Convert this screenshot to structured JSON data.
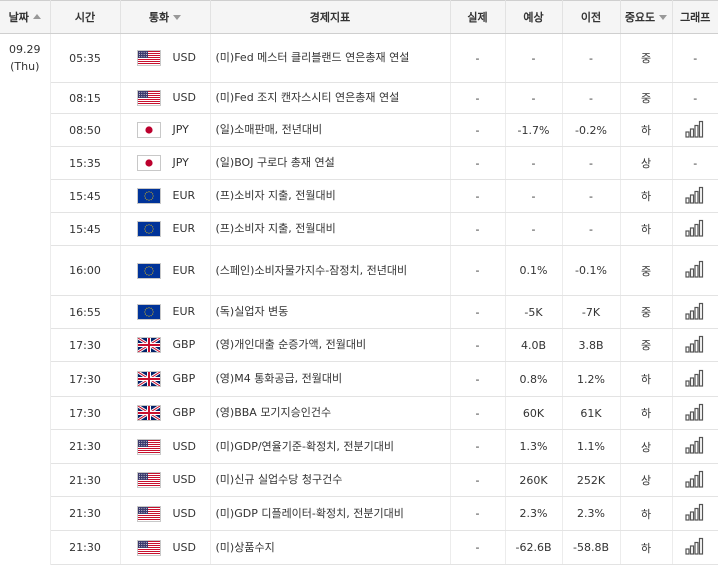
{
  "header": {
    "date": "날짜",
    "time": "시간",
    "currency": "통화",
    "indicator": "경제지표",
    "actual": "실제",
    "forecast": "예상",
    "previous": "이전",
    "importance": "중요도",
    "graph": "그래프"
  },
  "date_group": {
    "date": "09.29",
    "weekday": "(Thu)"
  },
  "rows": [
    {
      "time": "05:35",
      "flag": "us-flag-icon",
      "currency": "USD",
      "indicator": "(미)Fed 메스터 클리블랜드 연은총재 연설",
      "actual": "-",
      "forecast": "-",
      "previous": "-",
      "importance": "중",
      "graph": "-"
    },
    {
      "time": "08:15",
      "flag": "us-flag-icon",
      "currency": "USD",
      "indicator": "(미)Fed 조지 캔자스시티 연은총재 연설",
      "actual": "-",
      "forecast": "-",
      "previous": "-",
      "importance": "중",
      "graph": "-"
    },
    {
      "time": "08:50",
      "flag": "jp-flag-icon",
      "currency": "JPY",
      "indicator": "(일)소매판매, 전년대비",
      "actual": "-",
      "forecast": "-1.7%",
      "previous": "-0.2%",
      "importance": "하",
      "graph": "bar-chart-icon"
    },
    {
      "time": "15:35",
      "flag": "jp-flag-icon",
      "currency": "JPY",
      "indicator": "(일)BOJ 구로다 총재 연설",
      "actual": "-",
      "forecast": "-",
      "previous": "-",
      "importance": "상",
      "graph": "-"
    },
    {
      "time": "15:45",
      "flag": "eu-flag-icon",
      "currency": "EUR",
      "indicator": "(프)소비자 지출, 전월대비",
      "actual": "-",
      "forecast": "-",
      "previous": "-",
      "importance": "하",
      "graph": "bar-chart-icon"
    },
    {
      "time": "15:45",
      "flag": "eu-flag-icon",
      "currency": "EUR",
      "indicator": "(프)소비자 지출, 전월대비",
      "actual": "-",
      "forecast": "-",
      "previous": "-",
      "importance": "하",
      "graph": "bar-chart-icon"
    },
    {
      "time": "16:00",
      "flag": "eu-flag-icon",
      "currency": "EUR",
      "indicator": "(스페인)소비자물가지수-잠정치, 전년대비",
      "actual": "-",
      "forecast": "0.1%",
      "previous": "-0.1%",
      "importance": "중",
      "graph": "bar-chart-icon"
    },
    {
      "time": "16:55",
      "flag": "eu-flag-icon",
      "currency": "EUR",
      "indicator": "(독)실업자 변동",
      "actual": "-",
      "forecast": "-5K",
      "previous": "-7K",
      "importance": "중",
      "graph": "bar-chart-icon"
    },
    {
      "time": "17:30",
      "flag": "gb-flag-icon",
      "currency": "GBP",
      "indicator": "(영)개인대출 순증가액, 전월대비",
      "actual": "-",
      "forecast": "4.0B",
      "previous": "3.8B",
      "importance": "중",
      "graph": "bar-chart-icon"
    },
    {
      "time": "17:30",
      "flag": "gb-flag-icon",
      "currency": "GBP",
      "indicator": "(영)M4 통화공급, 전월대비",
      "actual": "-",
      "forecast": "0.8%",
      "previous": "1.2%",
      "importance": "하",
      "graph": "bar-chart-icon"
    },
    {
      "time": "17:30",
      "flag": "gb-flag-icon",
      "currency": "GBP",
      "indicator": "(영)BBA 모기지승인건수",
      "actual": "-",
      "forecast": "60K",
      "previous": "61K",
      "importance": "하",
      "graph": "bar-chart-icon"
    },
    {
      "time": "21:30",
      "flag": "us-flag-icon",
      "currency": "USD",
      "indicator": "(미)GDP/연율기준-확정치, 전분기대비",
      "actual": "-",
      "forecast": "1.3%",
      "previous": "1.1%",
      "importance": "상",
      "graph": "bar-chart-icon"
    },
    {
      "time": "21:30",
      "flag": "us-flag-icon",
      "currency": "USD",
      "indicator": "(미)신규 실업수당 청구건수",
      "actual": "-",
      "forecast": "260K",
      "previous": "252K",
      "importance": "상",
      "graph": "bar-chart-icon"
    },
    {
      "time": "21:30",
      "flag": "us-flag-icon",
      "currency": "USD",
      "indicator": "(미)GDP 디플레이터-확정치, 전분기대비",
      "actual": "-",
      "forecast": "2.3%",
      "previous": "2.3%",
      "importance": "하",
      "graph": "bar-chart-icon"
    },
    {
      "time": "21:30",
      "flag": "us-flag-icon",
      "currency": "USD",
      "indicator": "(미)상품수지",
      "actual": "-",
      "forecast": "-62.6B",
      "previous": "-58.8B",
      "importance": "하",
      "graph": "bar-chart-icon"
    }
  ],
  "colors": {
    "header_bg": "#f5f5f5",
    "border": "#e3e3e3",
    "chart_icon": "#555555"
  }
}
